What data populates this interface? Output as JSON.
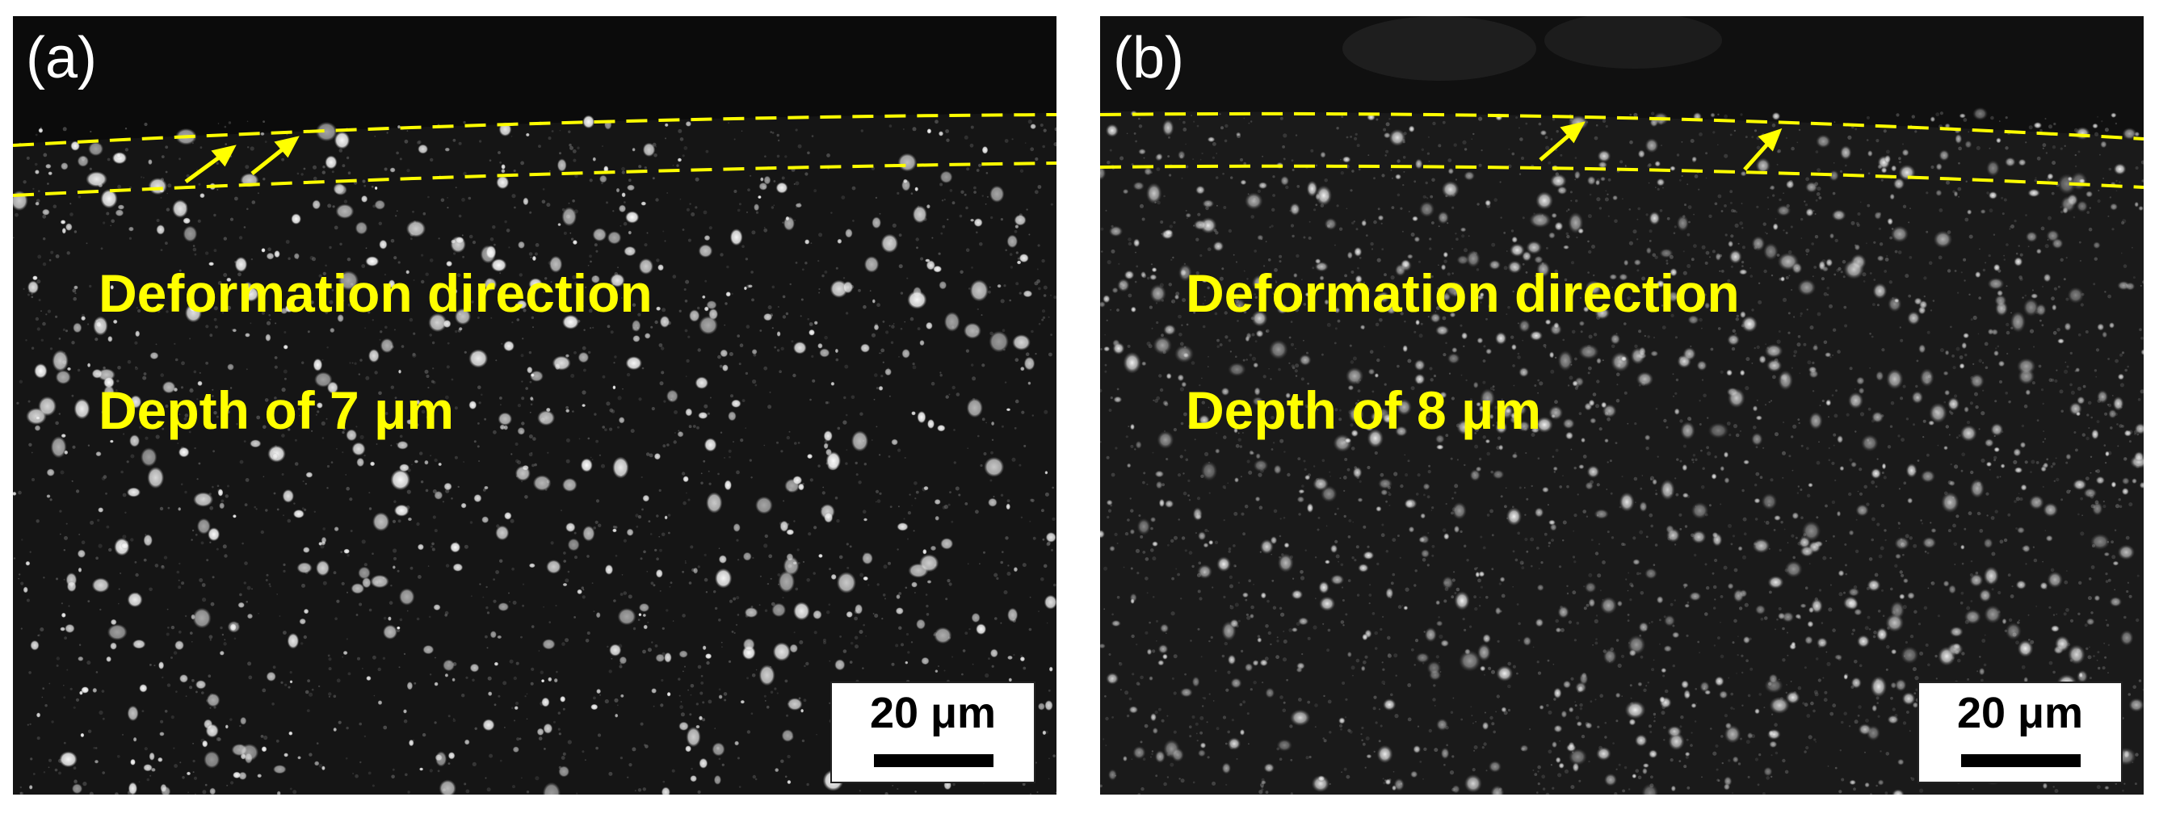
{
  "figure": {
    "panels": [
      {
        "label": "(a)",
        "annotation_direction": "Deformation direction",
        "annotation_depth": "Depth of 7 μm",
        "scale_bar": "20 μm"
      },
      {
        "label": "(b)",
        "annotation_direction": "Deformation direction",
        "annotation_depth": "Depth of 8 μm",
        "scale_bar": "20 μm"
      }
    ],
    "colors": {
      "annotation": "#ffff00",
      "background_dark": "#0f0f0f",
      "particles": "#ffffff"
    }
  }
}
